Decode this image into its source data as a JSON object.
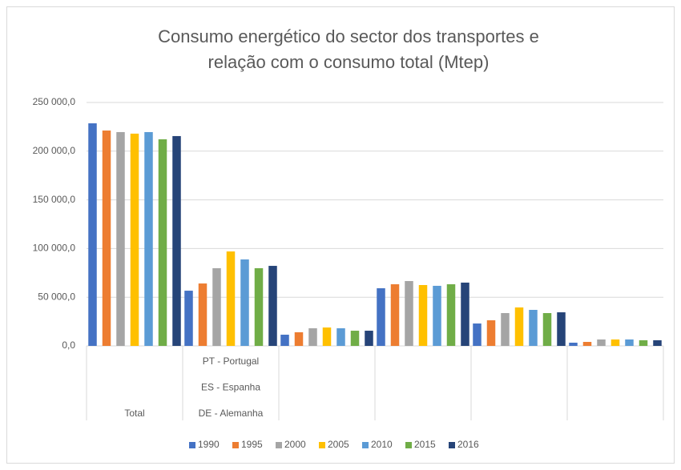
{
  "chart_data": {
    "type": "bar",
    "title": "Consumo energético do sector dos transportes e relação com o consumo total (Mtep)",
    "categories": [
      "Total",
      [
        "PT - Portugal",
        "ES - Espanha",
        "DE - Alemanha"
      ],
      null,
      null,
      null,
      null
    ],
    "series": [
      {
        "name": "1990",
        "color": "#4472c4",
        "values": [
          228600,
          56700,
          11500,
          59200,
          23000,
          3300
        ]
      },
      {
        "name": "1995",
        "color": "#ed7d31",
        "values": [
          221200,
          64100,
          14000,
          63300,
          26300,
          4100
        ]
      },
      {
        "name": "2000",
        "color": "#a5a5a5",
        "values": [
          219600,
          79800,
          18100,
          66600,
          33700,
          6600
        ]
      },
      {
        "name": "2005",
        "color": "#ffc000",
        "values": [
          218000,
          97000,
          18900,
          62500,
          39500,
          6600
        ]
      },
      {
        "name": "2010",
        "color": "#5b9bd5",
        "values": [
          219600,
          88800,
          18100,
          61700,
          37000,
          6600
        ]
      },
      {
        "name": "2015",
        "color": "#70ad47",
        "values": [
          212200,
          79800,
          15600,
          63300,
          33700,
          5800
        ]
      },
      {
        "name": "2016",
        "color": "#264478",
        "values": [
          215500,
          82200,
          15600,
          65000,
          34500,
          5800
        ]
      }
    ],
    "ylim": [
      0,
      250000
    ],
    "yticks": [
      {
        "value": 0,
        "label": "0,0"
      },
      {
        "value": 50000,
        "label": "50 000,0"
      },
      {
        "value": 100000,
        "label": "100 000,0"
      },
      {
        "value": 150000,
        "label": "150 000,0"
      },
      {
        "value": 200000,
        "label": "200 000,0"
      },
      {
        "value": 250000,
        "label": "250 000,0"
      }
    ],
    "grid": true,
    "legend": "bottom"
  }
}
